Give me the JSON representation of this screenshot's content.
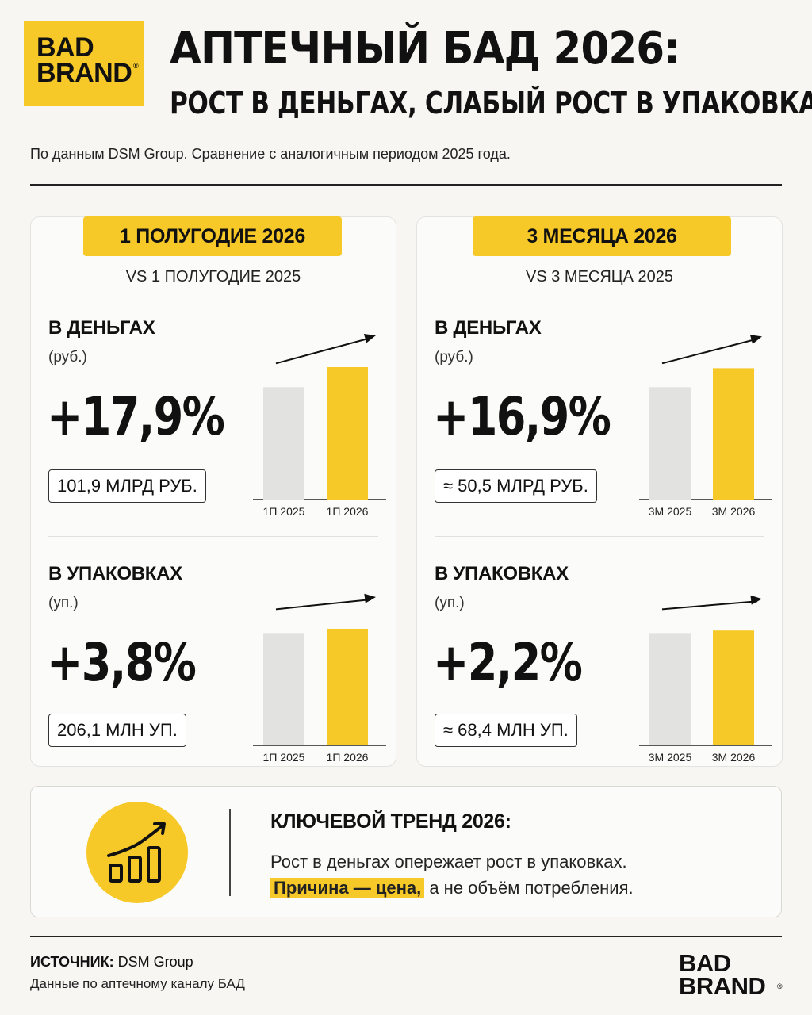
{
  "brand": {
    "line1": "BAD",
    "line2": "BRAND",
    "reg": "®"
  },
  "header": {
    "title": "АПТЕЧНЫЙ БАД 2026:",
    "subtitle": "РОСТ В ДЕНЬГАХ, СЛАБЫЙ РОСТ В УПАКОВКАХ",
    "source_line": "По данным DSM Group. Сравнение с аналогичным периодом 2025 года."
  },
  "colors": {
    "accent": "#f7c928",
    "base_bar": "#e2e2e0",
    "text": "#111111"
  },
  "panels": [
    {
      "period": "1 ПОЛУГОДИЕ 2026",
      "vs": "VS 1 ПОЛУГОДИЕ 2025",
      "money": {
        "title": "В ДЕНЬГАХ",
        "unit": "(руб.)",
        "growth": "+17,9%",
        "absolute": "101,9 МЛРД РУБ."
      },
      "packs": {
        "title": "В УПАКОВКАХ",
        "unit": "(уп.)",
        "growth": "+3,8%",
        "absolute": "206,1 МЛН УП."
      }
    },
    {
      "period": "3 МЕСЯЦА 2026",
      "vs": "VS 3 МЕСЯЦА 2025",
      "money": {
        "title": "В ДЕНЬГАХ",
        "unit": "(руб.)",
        "growth": "+16,9%",
        "absolute": "≈ 50,5 МЛРД РУБ."
      },
      "packs": {
        "title": "В УПАКОВКАХ",
        "unit": "(уп.)",
        "growth": "+2,2%",
        "absolute": "≈ 68,4 МЛН УП."
      }
    }
  ],
  "chart_data": [
    {
      "type": "bar",
      "categories": [
        "1П 2025",
        "1П 2026"
      ],
      "values": [
        100,
        117.9
      ],
      "ylim": [
        0,
        120
      ],
      "colors": [
        "#e2e2e0",
        "#f7c928"
      ],
      "trend_arrow": true
    },
    {
      "type": "bar",
      "categories": [
        "1П 2025",
        "1П 2026"
      ],
      "values": [
        100,
        103.8
      ],
      "ylim": [
        0,
        120
      ],
      "colors": [
        "#e2e2e0",
        "#f7c928"
      ],
      "trend_arrow": true
    },
    {
      "type": "bar",
      "categories": [
        "3М 2025",
        "3М 2026"
      ],
      "values": [
        100,
        116.9
      ],
      "ylim": [
        0,
        120
      ],
      "colors": [
        "#e2e2e0",
        "#f7c928"
      ],
      "trend_arrow": true
    },
    {
      "type": "bar",
      "categories": [
        "3М 2025",
        "3М 2026"
      ],
      "values": [
        100,
        102.2
      ],
      "ylim": [
        0,
        120
      ],
      "colors": [
        "#e2e2e0",
        "#f7c928"
      ],
      "trend_arrow": true
    }
  ],
  "trend": {
    "icon": "rising-chart-icon",
    "title": "КЛЮЧЕВОЙ ТРЕНД 2026:",
    "line1": "Рост в деньгах опережает рост в упаковках.",
    "highlight": "Причина — цена,",
    "line2_rest": " а не объём потребления."
  },
  "footer": {
    "source_label": "ИСТОЧНИК:",
    "source_value": " DSM Group",
    "note": "Данные по аптечному каналу БАД"
  }
}
